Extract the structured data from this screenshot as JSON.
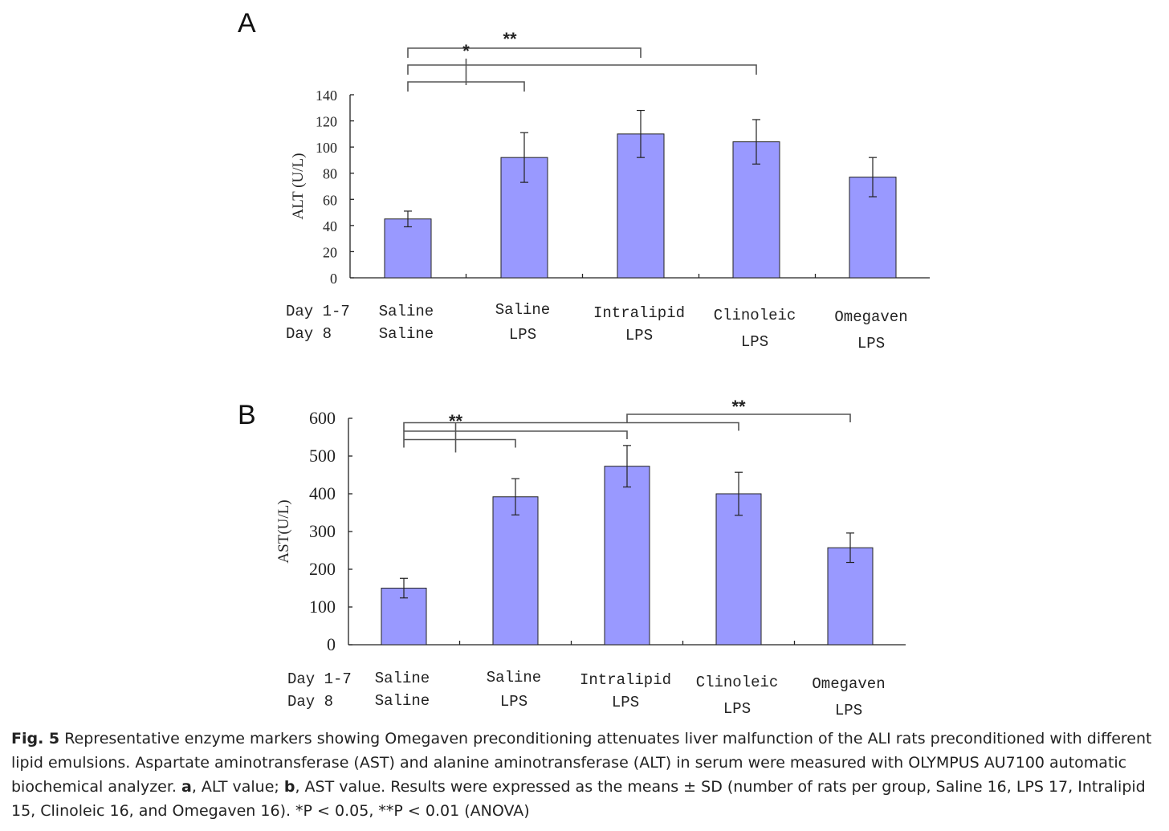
{
  "chart_data": [
    {
      "panel": "A",
      "type": "bar",
      "ylabel": "ALT (U/L)",
      "ylim": [
        0,
        140
      ],
      "yticks": [
        0,
        20,
        40,
        60,
        80,
        100,
        120,
        140
      ],
      "row_labels": [
        "Day 1-7",
        "Day 8"
      ],
      "categories": [
        {
          "day1_7": "Saline",
          "day8": "Saline"
        },
        {
          "day1_7": "Saline",
          "day8": "LPS"
        },
        {
          "day1_7": "Intralipid",
          "day8": "LPS"
        },
        {
          "day1_7": "Clinoleic",
          "day8": "LPS"
        },
        {
          "day1_7": "Omegaven",
          "day8": "LPS"
        }
      ],
      "values": [
        45,
        92,
        110,
        104,
        77
      ],
      "errors": [
        6,
        19,
        18,
        17,
        15
      ],
      "brackets": [
        {
          "from": 0,
          "to": 2,
          "level": 1,
          "label": "**"
        },
        {
          "from": 0,
          "to": 3,
          "level": 2,
          "label": ""
        },
        {
          "from": 0,
          "to": 1,
          "level": 3,
          "label": "*"
        }
      ]
    },
    {
      "panel": "B",
      "type": "bar",
      "ylabel": "AST(U/L)",
      "ylim": [
        0,
        600
      ],
      "yticks": [
        0,
        100,
        200,
        300,
        400,
        500,
        600
      ],
      "row_labels": [
        "Day 1-7",
        "Day 8"
      ],
      "categories": [
        {
          "day1_7": "Saline",
          "day8": "Saline"
        },
        {
          "day1_7": "Saline",
          "day8": "LPS"
        },
        {
          "day1_7": "Intralipid",
          "day8": "LPS"
        },
        {
          "day1_7": "Clinoleic",
          "day8": "LPS"
        },
        {
          "day1_7": "Omegaven",
          "day8": "LPS"
        }
      ],
      "values": [
        150,
        392,
        473,
        400,
        257
      ],
      "errors": [
        26,
        48,
        55,
        57,
        39
      ],
      "brackets": [
        {
          "from": 2,
          "to": 4,
          "level": 1,
          "label": "**"
        },
        {
          "from": 0,
          "to": 3,
          "level": 2,
          "label": ""
        },
        {
          "from": 0,
          "to": 2,
          "level": 3,
          "label": ""
        },
        {
          "from": 0,
          "to": 1,
          "level": 4,
          "label": ""
        }
      ],
      "group_star": "**"
    }
  ],
  "caption": {
    "label": "Fig. 5",
    "text_1": " Representative enzyme markers showing Omegaven preconditioning attenuates liver malfunction of the ALI rats preconditioned with different lipid emulsions. Aspartate aminotransferase (AST) and alanine aminotransferase (ALT) in serum were measured with OLYMPUS AU7100 automatic biochemical analyzer. ",
    "a": "a",
    "text_2": ", ALT value; ",
    "b": "b",
    "text_3": ", AST value. Results were expressed as the means ± SD (number of rats per group, Saline 16, LPS 17, Intralipid 15, Clinoleic 16, and Omegaven 16). *P < 0.05, **P < 0.01 (ANOVA)"
  }
}
